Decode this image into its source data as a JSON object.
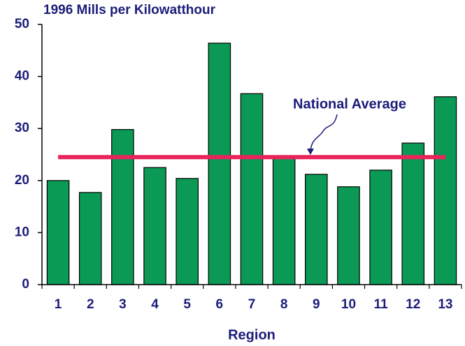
{
  "chart_data": {
    "type": "bar",
    "title": "1996 Mills per Kilowatthour",
    "x_label": "Region",
    "categories": [
      "1",
      "2",
      "3",
      "4",
      "5",
      "6",
      "7",
      "8",
      "9",
      "10",
      "11",
      "12",
      "13"
    ],
    "values": [
      20.0,
      17.7,
      29.8,
      22.5,
      20.4,
      46.4,
      36.7,
      24.4,
      21.2,
      18.8,
      22.0,
      27.2,
      36.1
    ],
    "color": "#0b9a55",
    "ylim": [
      0,
      50
    ],
    "yticks": [
      0,
      10,
      20,
      30,
      40,
      50
    ],
    "reference_line": {
      "label": "National Average",
      "value": 24.5,
      "color": "#e8245a"
    }
  }
}
